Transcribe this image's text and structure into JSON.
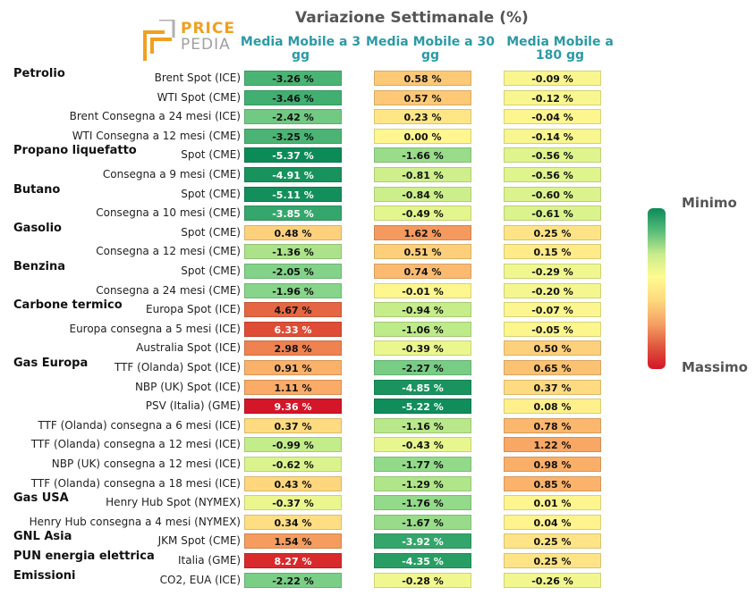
{
  "chart_data": {
    "type": "table",
    "title": "Variazione Settimanale (%)",
    "logo_text": [
      "PRICE",
      "PEDIA"
    ],
    "columns": [
      "Media Mobile a 3 gg",
      "Media Mobile a 30 gg",
      "Media Mobile a 180 gg"
    ],
    "legend": {
      "top": "Minimo",
      "bottom": "Massimo",
      "colors": [
        "#0b8a58",
        "#fffb90",
        "#d31528"
      ]
    },
    "value_range": [
      -5.37,
      9.36
    ],
    "rows": [
      {
        "group": "Petrolio",
        "label": "Brent Spot (ICE)",
        "values": [
          "-3.26 %",
          "0.58 %",
          "-0.09 %"
        ]
      },
      {
        "group": "",
        "label": "WTI Spot (CME)",
        "values": [
          "-3.46 %",
          "0.57 %",
          "-0.12 %"
        ]
      },
      {
        "group": "",
        "label": "Brent Consegna a 24 mesi (ICE)",
        "values": [
          "-2.42 %",
          "0.23 %",
          "-0.04 %"
        ]
      },
      {
        "group": "",
        "label": "WTI Consegna a 12 mesi (CME)",
        "values": [
          "-3.25 %",
          "0.00 %",
          "-0.14 %"
        ]
      },
      {
        "group": "Propano liquefatto",
        "label": "Spot (CME)",
        "values": [
          "-5.37 %",
          "-1.66 %",
          "-0.56 %"
        ]
      },
      {
        "group": "",
        "label": "Consegna a 9 mesi (CME)",
        "values": [
          "-4.91 %",
          "-0.81 %",
          "-0.56 %"
        ]
      },
      {
        "group": "Butano",
        "label": "Spot (CME)",
        "values": [
          "-5.11 %",
          "-0.84 %",
          "-0.60 %"
        ]
      },
      {
        "group": "",
        "label": "Consegna a 10 mesi (CME)",
        "values": [
          "-3.85 %",
          "-0.49 %",
          "-0.61 %"
        ]
      },
      {
        "group": "Gasolio",
        "label": "Spot (CME)",
        "values": [
          "0.48 %",
          "1.62 %",
          "0.25 %"
        ]
      },
      {
        "group": "",
        "label": "Consegna a 12 mesi (CME)",
        "values": [
          "-1.36 %",
          "0.51 %",
          "0.15 %"
        ]
      },
      {
        "group": "Benzina",
        "label": "Spot (CME)",
        "values": [
          "-2.05 %",
          "0.74 %",
          "-0.29 %"
        ]
      },
      {
        "group": "",
        "label": "Consegna a 24 mesi (CME)",
        "values": [
          "-1.96 %",
          "-0.01 %",
          "-0.20 %"
        ]
      },
      {
        "group": "Carbone termico",
        "label": "Europa Spot (ICE)",
        "values": [
          "4.67 %",
          "-0.94 %",
          "-0.07 %"
        ]
      },
      {
        "group": "",
        "label": "Europa consegna a 5 mesi (ICE)",
        "values": [
          "6.33 %",
          "-1.06 %",
          "-0.05 %"
        ]
      },
      {
        "group": "",
        "label": "Australia Spot (ICE)",
        "values": [
          "2.98 %",
          "-0.39 %",
          "0.50 %"
        ]
      },
      {
        "group": "Gas Europa",
        "label": "TTF (Olanda) Spot (ICE)",
        "values": [
          "0.91 %",
          "-2.27 %",
          "0.65 %"
        ]
      },
      {
        "group": "",
        "label": "NBP (UK) Spot (ICE)",
        "values": [
          "1.11 %",
          "-4.85 %",
          "0.37 %"
        ]
      },
      {
        "group": "",
        "label": "PSV (Italia) (GME)",
        "values": [
          "9.36 %",
          "-5.22 %",
          "0.08 %"
        ]
      },
      {
        "group": "",
        "label": "TTF (Olanda) consegna a 6 mesi (ICE)",
        "values": [
          "0.37 %",
          "-1.16 %",
          "0.78 %"
        ]
      },
      {
        "group": "",
        "label": "TTF (Olanda) consegna a 12 mesi (ICE)",
        "values": [
          "-0.99 %",
          "-0.43 %",
          "1.22 %"
        ]
      },
      {
        "group": "",
        "label": "NBP (UK) consegna a 12 mesi (ICE)",
        "values": [
          "-0.62 %",
          "-1.77 %",
          "0.98 %"
        ]
      },
      {
        "group": "",
        "label": "TTF (Olanda) consegna a 18 mesi (ICE)",
        "values": [
          "0.43 %",
          "-1.29 %",
          "0.85 %"
        ]
      },
      {
        "group": "Gas USA",
        "label": "Henry Hub Spot (NYMEX)",
        "values": [
          "-0.37 %",
          "-1.76 %",
          "0.01 %"
        ]
      },
      {
        "group": "",
        "label": "Henry Hub consegna a 4 mesi (NYMEX)",
        "values": [
          "0.34 %",
          "-1.67 %",
          "0.04 %"
        ]
      },
      {
        "group": "GNL Asia",
        "label": "JKM Spot (CME)",
        "values": [
          "1.54 %",
          "-3.92 %",
          "0.25 %"
        ]
      },
      {
        "group": "PUN energia elettrica",
        "label": "Italia (GME)",
        "values": [
          "8.27 %",
          "-4.35 %",
          "0.25 %"
        ]
      },
      {
        "group": "Emissioni",
        "label": "CO2, EUA (ICE)",
        "values": [
          "-2.22 %",
          "-0.28 %",
          "-0.26 %"
        ]
      }
    ]
  }
}
